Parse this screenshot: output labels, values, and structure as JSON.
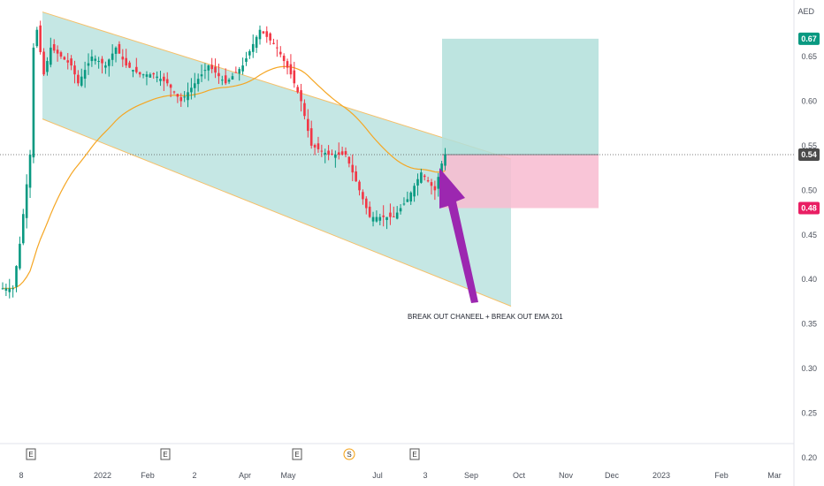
{
  "chart_data": {
    "type": "candlestick",
    "currency": "AED",
    "y_ticks": [
      "0.65",
      "0.60",
      "0.55",
      "0.50",
      "0.45",
      "0.40",
      "0.35",
      "0.30",
      "0.25",
      "0.20"
    ],
    "ylim": [
      0.2,
      0.69
    ],
    "x_ticks": [
      "8",
      "2022",
      "Feb",
      "2",
      "Apr",
      "May",
      "Jul",
      "3",
      "Sep",
      "Oct",
      "Nov",
      "Dec",
      "2023",
      "Feb",
      "Mar"
    ],
    "price_badges": [
      {
        "label": "0.67",
        "value": 0.67,
        "color": "#089981"
      },
      {
        "label": "0.54",
        "value": 0.54,
        "color": "#4a4a4a"
      },
      {
        "label": "0.48",
        "value": 0.48,
        "color": "#e91e63"
      }
    ],
    "annotation": "BREAK OUT CHANEEL + BREAK OUT EMA 201",
    "events": [
      "E",
      "E",
      "E",
      "S",
      "E"
    ],
    "position": {
      "entry": 0.54,
      "target": 0.67,
      "stop": 0.48
    },
    "channel": {
      "upper": [
        0.7,
        0.535
      ],
      "lower": [
        0.58,
        0.37
      ]
    },
    "ema_label": "EMA 201",
    "colors": {
      "up": "#089981",
      "down": "#f23645",
      "ema": "#f5a623",
      "arrow": "#9c27b0",
      "channel": "#b2dfdb",
      "target_zone": "#b2dfdb",
      "stop_zone": "#f8bbd0"
    }
  }
}
